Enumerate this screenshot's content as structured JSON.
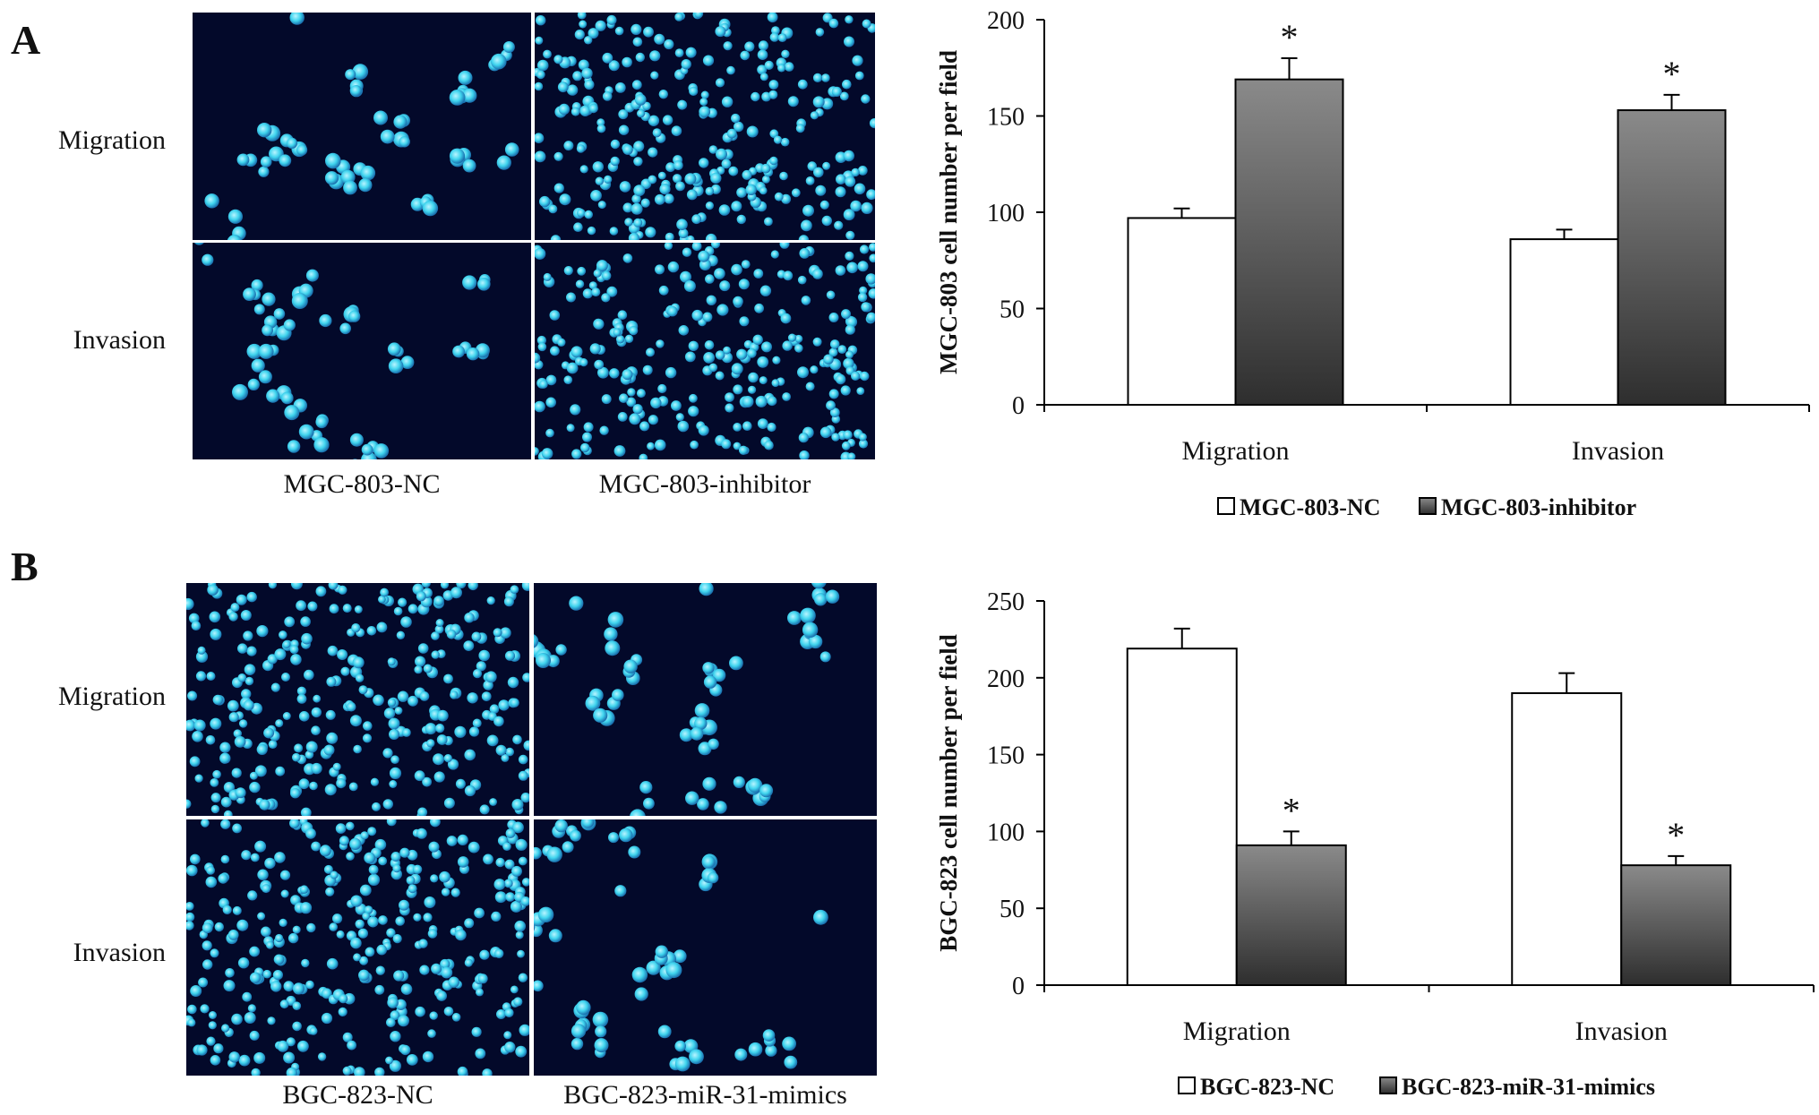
{
  "panels": [
    {
      "letter": "A",
      "row_labels": [
        "Migration",
        "Invasion"
      ],
      "column_labels": [
        "MGC-803-NC",
        "MGC-803-inhibitor"
      ],
      "images": [
        {
          "name": "mgc803-nc-migration",
          "density": "sparse"
        },
        {
          "name": "mgc803-inhibitor-migration",
          "density": "dense"
        },
        {
          "name": "mgc803-nc-invasion",
          "density": "sparse"
        },
        {
          "name": "mgc803-inhibitor-invasion",
          "density": "dense"
        }
      ]
    },
    {
      "letter": "B",
      "row_labels": [
        "Migration",
        "Invasion"
      ],
      "column_labels": [
        "BGC-823-NC",
        "BGC-823-miR-31-mimics"
      ],
      "images": [
        {
          "name": "bgc823-nc-migration",
          "density": "dense"
        },
        {
          "name": "bgc823-mimics-migration",
          "density": "sparse"
        },
        {
          "name": "bgc823-nc-invasion",
          "density": "dense"
        },
        {
          "name": "bgc823-mimics-invasion",
          "density": "sparse"
        }
      ]
    }
  ],
  "colors": {
    "micro_background": "#03092a",
    "nucleus": "#3fd4ee",
    "nc_bar_fill": "#ffffff",
    "treated_bar_top": "#8a8a8a",
    "treated_bar_bottom": "#2e2e2e",
    "axis": "#000000"
  },
  "chart_data": [
    {
      "type": "bar",
      "categories": [
        "Migration",
        "Invasion"
      ],
      "series": [
        {
          "name": "MGC-803-NC",
          "values": [
            97,
            86
          ],
          "errors": [
            5,
            5
          ],
          "marker": ""
        },
        {
          "name": "MGC-803-inhibitor",
          "values": [
            169,
            153
          ],
          "errors": [
            11,
            8
          ],
          "marker": "*"
        }
      ],
      "title": "",
      "xlabel": "",
      "ylabel": "MGC-803 cell number per field",
      "ylim": [
        0,
        200
      ],
      "yticks": [
        0,
        50,
        100,
        150,
        200
      ],
      "legend": "bottom",
      "grid": false
    },
    {
      "type": "bar",
      "categories": [
        "Migration",
        "Invasion"
      ],
      "series": [
        {
          "name": "BGC-823-NC",
          "values": [
            219,
            190
          ],
          "errors": [
            13,
            13
          ],
          "marker": ""
        },
        {
          "name": "BGC-823-miR-31-mimics",
          "values": [
            91,
            78
          ],
          "errors": [
            9,
            6
          ],
          "marker": "*"
        }
      ],
      "title": "",
      "xlabel": "",
      "ylabel": "BGC-823 cell number per field",
      "ylim": [
        0,
        250
      ],
      "yticks": [
        0,
        50,
        100,
        150,
        200,
        250
      ],
      "legend": "bottom",
      "grid": false
    }
  ]
}
